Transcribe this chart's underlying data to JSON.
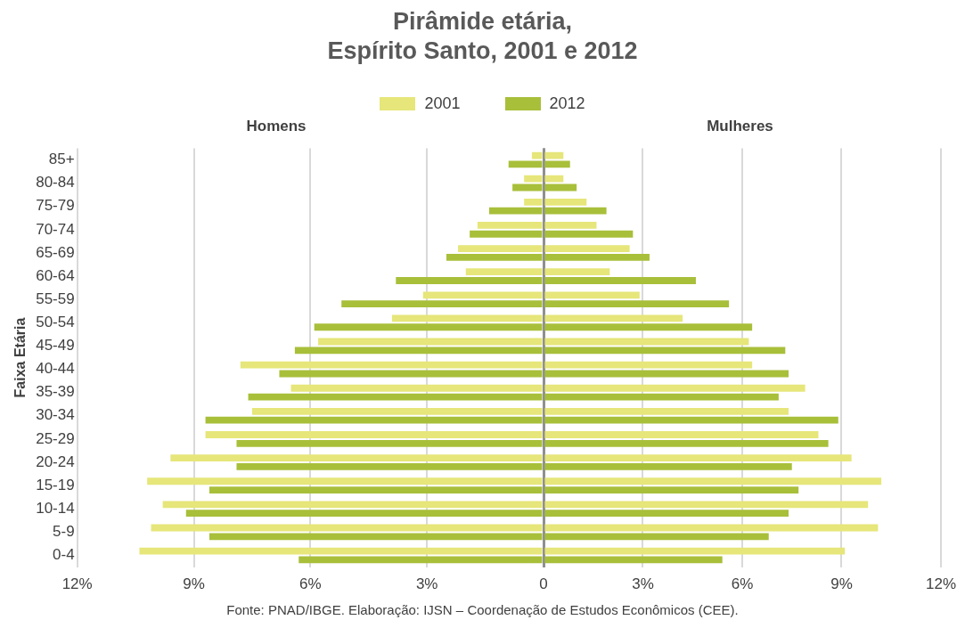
{
  "chart_data": [
    {
      "type": "bar",
      "orientation": "horizontal",
      "title": "Pirâmide etária,\nEspírito Santo, 2001 e 2012",
      "subtitle": "Homens",
      "ylabel": "Faixa Etária",
      "categories": [
        "85+",
        "80-84",
        "75-79",
        "70-74",
        "65-69",
        "60-64",
        "55-59",
        "50-54",
        "45-49",
        "40-44",
        "35-39",
        "30-34",
        "25-29",
        "20-24",
        "15-19",
        "10-14",
        "5-9",
        "0-4"
      ],
      "series": [
        {
          "name": "2001",
          "color": "#e6e67a",
          "values": [
            0.3,
            0.5,
            0.5,
            1.7,
            2.2,
            2.0,
            3.1,
            3.9,
            5.8,
            7.8,
            6.5,
            7.5,
            8.7,
            9.6,
            10.2,
            9.8,
            10.1,
            10.4
          ]
        },
        {
          "name": "2012",
          "color": "#a8bf3a",
          "values": [
            0.9,
            0.8,
            1.4,
            1.9,
            2.5,
            3.8,
            5.2,
            5.9,
            6.4,
            6.8,
            7.6,
            8.7,
            7.9,
            7.9,
            8.6,
            9.2,
            8.6,
            6.3
          ]
        }
      ],
      "xlim": [
        12,
        0
      ],
      "xticks": [
        {
          "value": 12,
          "label": "12%"
        },
        {
          "value": 9,
          "label": "9%"
        },
        {
          "value": 6,
          "label": "6%"
        },
        {
          "value": 3,
          "label": "3%"
        },
        0
      ],
      "grid": "x",
      "legend": "top",
      "annotations": [
        "Fonte: PNAD/IBGE. Elaboração: IJSN – Coordenação de Estudos Econômicos (CEE)."
      ]
    },
    {
      "type": "bar",
      "orientation": "horizontal",
      "subtitle": "Mulheres",
      "categories": [
        null,
        null,
        null,
        null,
        null,
        null,
        null,
        null,
        null,
        null,
        null,
        null,
        null,
        null,
        null,
        null,
        null,
        null
      ],
      "series": [
        {
          "color": "#e6e67a",
          "values": [
            0.6,
            0.6,
            1.3,
            1.6,
            2.6,
            2.0,
            2.9,
            4.2,
            6.2,
            6.3,
            7.9,
            7.4,
            8.3,
            9.3,
            10.2,
            9.8,
            10.1,
            9.1
          ]
        },
        {
          "color": "#a8bf3a",
          "values": [
            0.8,
            1.0,
            1.9,
            2.7,
            3.2,
            4.6,
            5.6,
            6.3,
            7.3,
            7.4,
            7.1,
            8.9,
            8.6,
            7.5,
            7.7,
            7.4,
            6.8,
            5.4
          ]
        }
      ],
      "xlim": [
        0,
        12
      ],
      "xticks": [
        {
          "value": 0,
          "label": null
        },
        {
          "value": 3,
          "label": "3%"
        },
        {
          "value": 6,
          "label": "6%"
        },
        {
          "value": 9,
          "label": "9%"
        },
        {
          "value": 12,
          "label": "12%"
        }
      ],
      "grid": "x",
      "tick_labels": "x"
    }
  ]
}
